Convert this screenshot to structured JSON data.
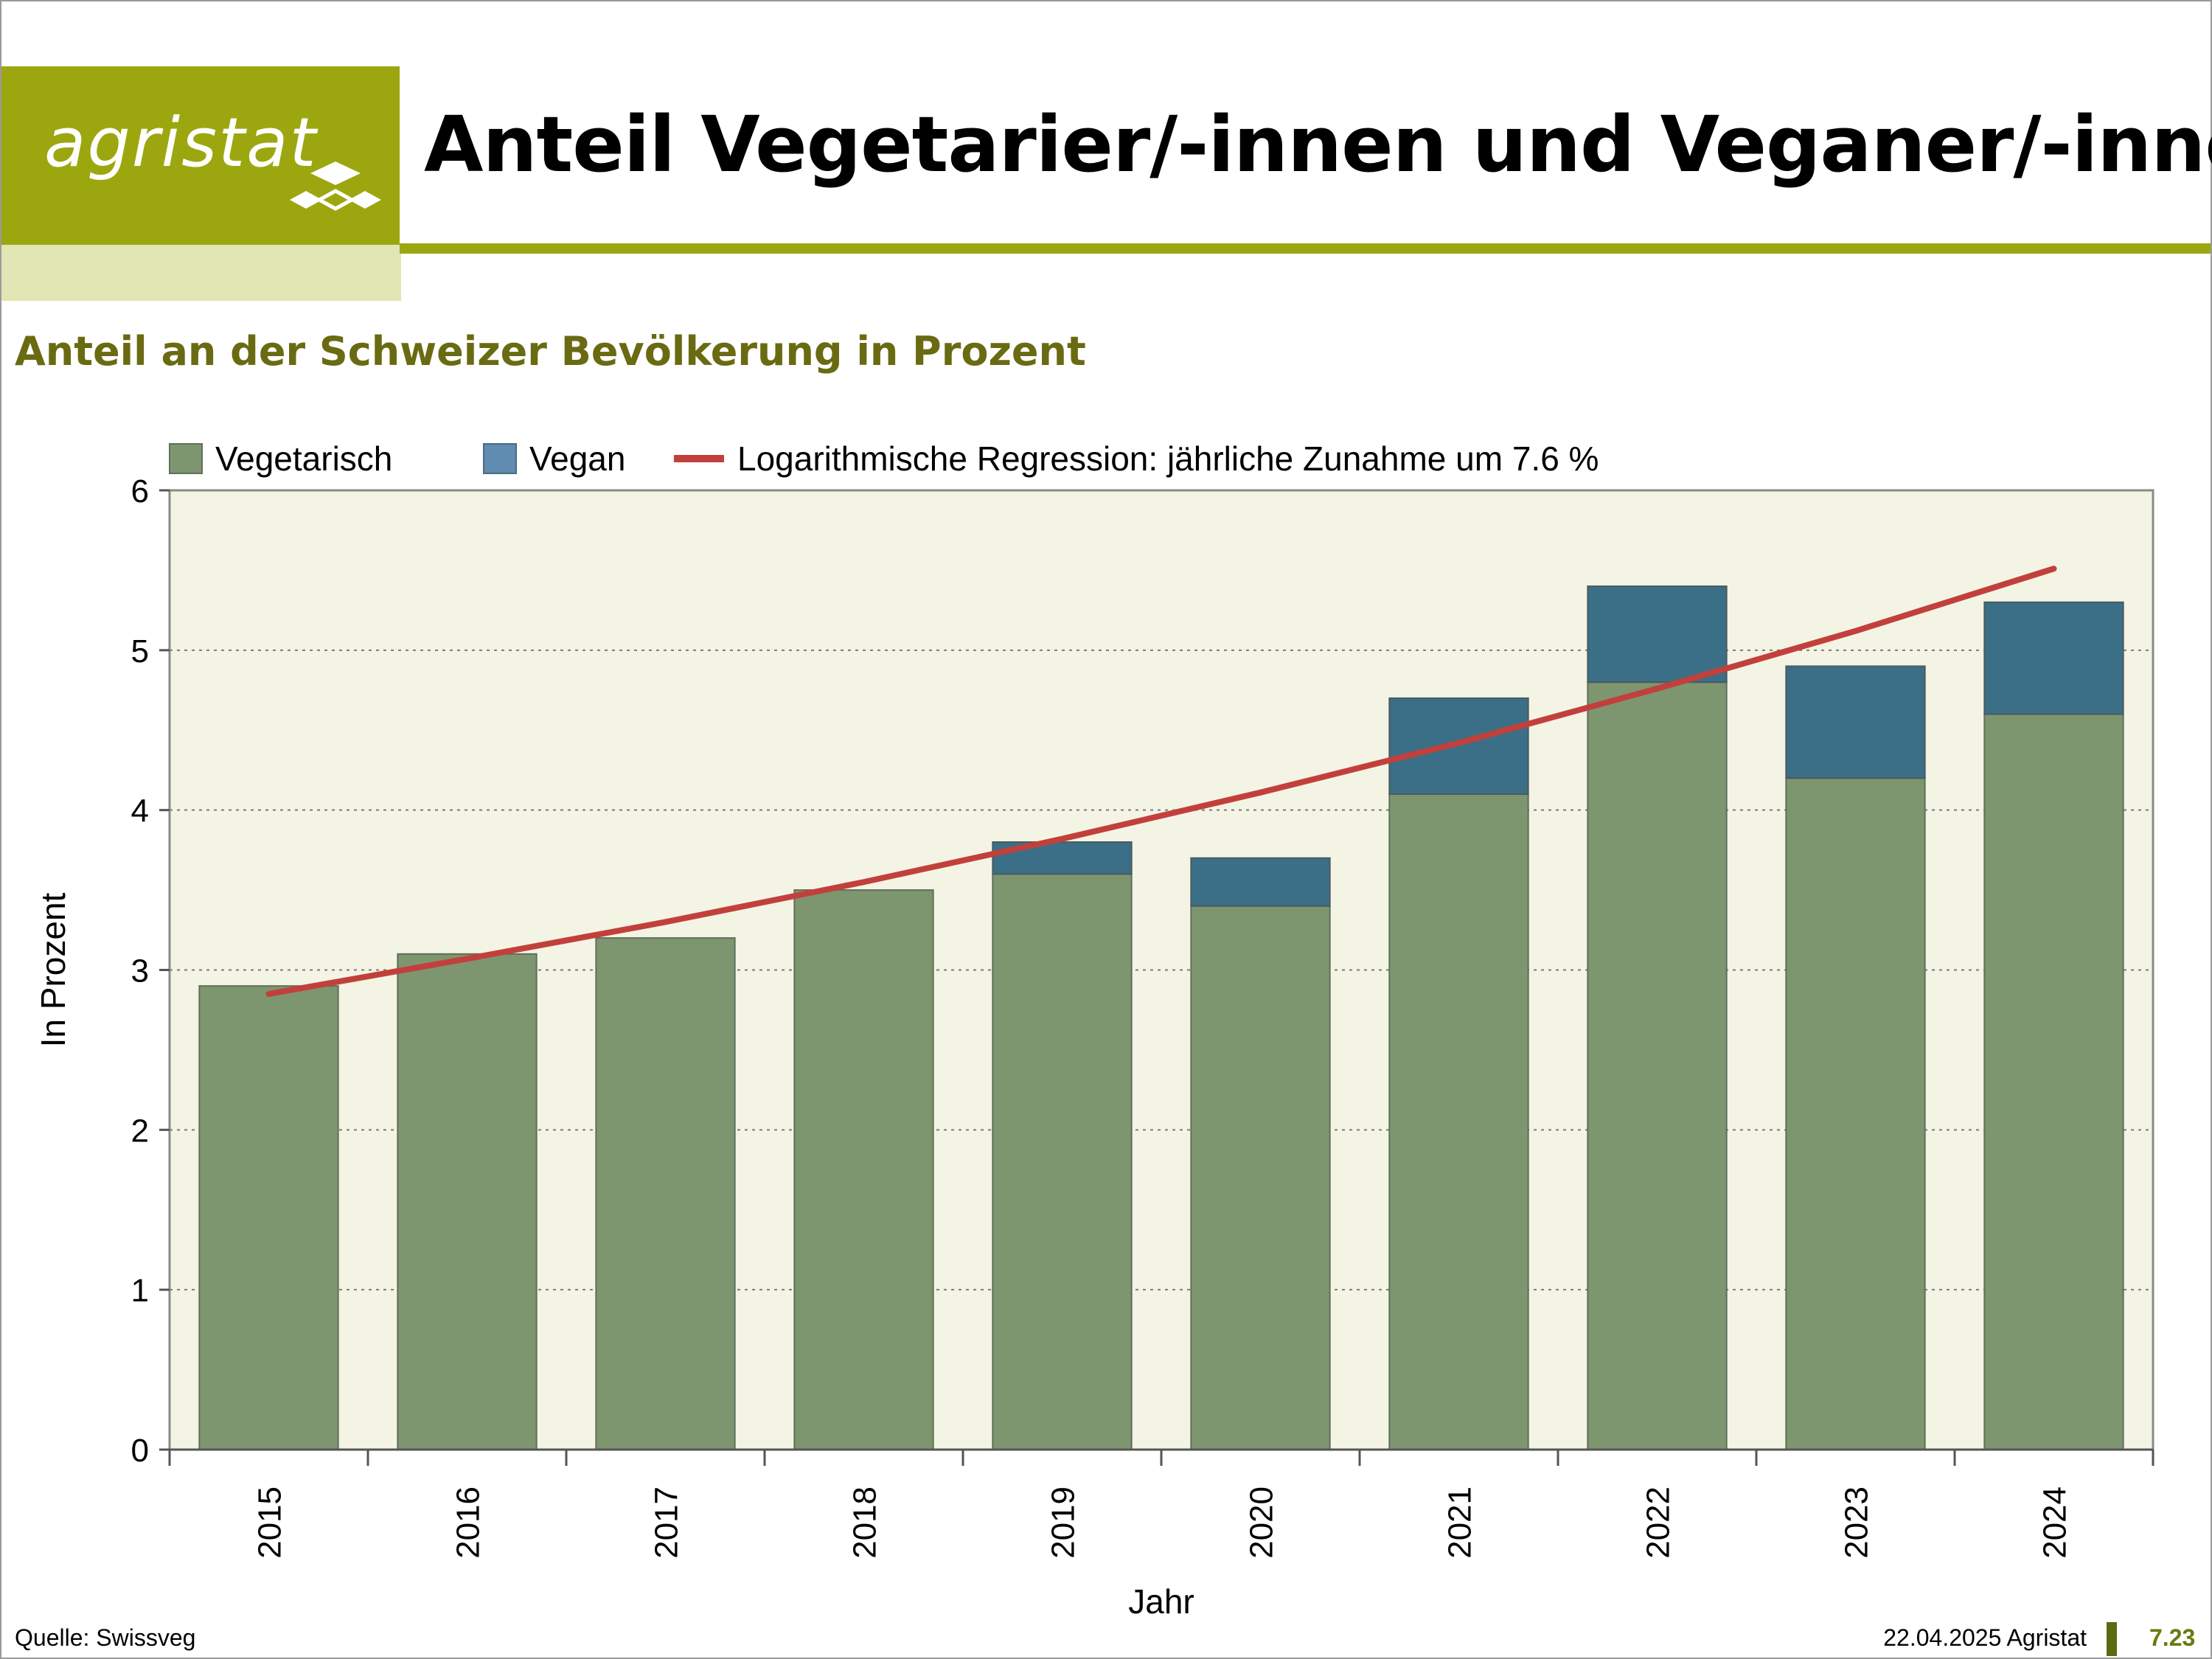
{
  "header": {
    "logo_text": "agristat",
    "title": "Anteil Vegetarier/-innen und Veganer/-innen",
    "subtitle": "Anteil an der Schweizer Bevölkerung in Prozent"
  },
  "footer": {
    "source": "Quelle: Swissveg",
    "date_publisher": "22.04.2025 Agristat",
    "page_number": "7.23"
  },
  "colors": {
    "brand": "#9ca70f",
    "vegetarisch": "#7e9670",
    "vegan": "#3b6f87",
    "regression": "#c2403c",
    "plot_bg": "#f4f4e4"
  },
  "chart_data": {
    "type": "bar",
    "stacked": true,
    "categories": [
      "2015",
      "2016",
      "2017",
      "2018",
      "2019",
      "2020",
      "2021",
      "2022",
      "2023",
      "2024"
    ],
    "series": [
      {
        "name": "Vegetarisch",
        "values": [
          2.9,
          3.1,
          3.2,
          3.5,
          3.6,
          3.4,
          4.1,
          4.8,
          4.2,
          4.6
        ]
      },
      {
        "name": "Vegan",
        "values": [
          0,
          0,
          0,
          0,
          0.2,
          0.3,
          0.6,
          0.6,
          0.7,
          0.7
        ]
      }
    ],
    "regression": {
      "name": "Logarithmische Regression: jährliche Zunahme um 7.6 %",
      "values": [
        2.85,
        3.07,
        3.3,
        3.55,
        3.82,
        4.11,
        4.42,
        4.76,
        5.12,
        5.51
      ]
    },
    "xlabel": "Jahr",
    "ylabel": "In Prozent",
    "ylim": [
      0,
      6
    ],
    "yticks": [
      0,
      1,
      2,
      3,
      4,
      5,
      6
    ],
    "grid": "horizontal dotted",
    "legend_position": "top"
  }
}
